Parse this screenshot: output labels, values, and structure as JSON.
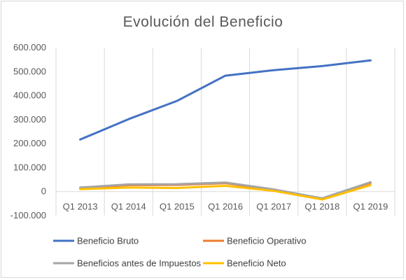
{
  "chart_data": {
    "type": "line",
    "title": "Evolución  del  Beneficio",
    "categories": [
      "Q1 2013",
      "Q1 2014",
      "Q1 2015",
      "Q1 2016",
      "Q1 2017",
      "Q1 2018",
      "Q1 2019"
    ],
    "ylim": [
      -100000,
      600000
    ],
    "yticks": [
      -100000,
      0,
      100000,
      200000,
      300000,
      400000,
      500000,
      600000
    ],
    "ytick_labels": [
      "-100.000",
      "0",
      "100.000",
      "200.000",
      "300.000",
      "400.000",
      "500.000",
      "600.000"
    ],
    "grid": "vertical",
    "legend_position": "bottom",
    "series": [
      {
        "name": "Beneficio Bruto",
        "color": "#4472c4",
        "values": [
          217000,
          302000,
          378000,
          483000,
          506000,
          523000,
          547000
        ]
      },
      {
        "name": "Beneficio Operativo",
        "color": "#ed7d31",
        "values": [
          15000,
          27000,
          28000,
          35000,
          7000,
          -30000,
          36000
        ]
      },
      {
        "name": "Beneficios antes de Impuestos",
        "color": "#a5a5a5",
        "values": [
          17000,
          30000,
          31000,
          38000,
          9000,
          -28000,
          39000
        ]
      },
      {
        "name": "Beneficio Neto",
        "color": "#ffc000",
        "values": [
          10000,
          17000,
          15000,
          24000,
          3000,
          -33000,
          27000
        ]
      }
    ]
  }
}
